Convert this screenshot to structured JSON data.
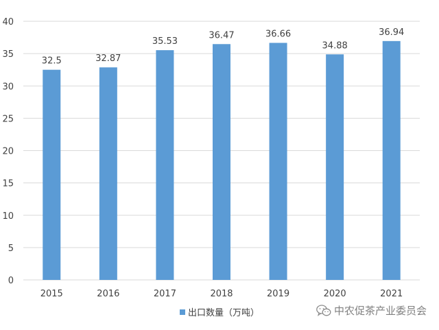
{
  "chart_data": {
    "type": "bar",
    "categories": [
      "2015",
      "2016",
      "2017",
      "2018",
      "2019",
      "2020",
      "2021"
    ],
    "series": [
      {
        "name": "出口数量（万吨）",
        "values": [
          32.5,
          32.87,
          35.53,
          36.47,
          36.66,
          34.88,
          36.94
        ],
        "color": "#5b9bd5"
      }
    ],
    "data_labels": [
      "32.5",
      "32.87",
      "35.53",
      "36.47",
      "36.66",
      "34.88",
      "36.94"
    ],
    "y_ticks": [
      "0",
      "5",
      "10",
      "15",
      "20",
      "25",
      "30",
      "35",
      "40"
    ],
    "ylim": [
      0,
      40
    ],
    "grid": true,
    "legend_position": "bottom"
  },
  "watermark": {
    "text": "中农促茶产业委员会",
    "icon": "wechat-icon"
  },
  "colors": {
    "bar": "#5b9bd5",
    "grid": "#d9d9d9",
    "text": "#404040"
  }
}
